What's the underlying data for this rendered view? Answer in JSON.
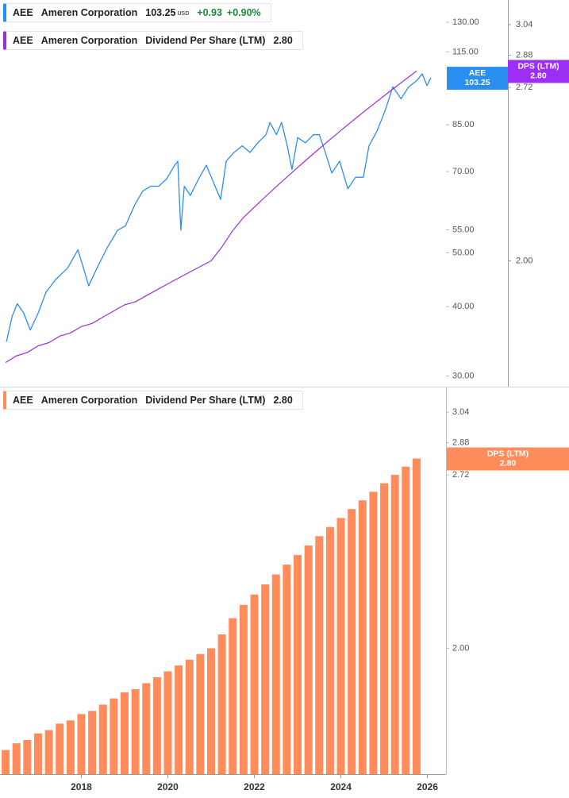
{
  "chart_data": [
    {
      "type": "line",
      "log_scale": true,
      "legend_rows": [
        {
          "ticker": "AEE",
          "company": "Ameren Corporation",
          "price": "103.25",
          "currency": "USD",
          "change": "+0.93",
          "change_percent": "+0.90%"
        },
        {
          "ticker": "AEE",
          "company": "Ameren Corporation",
          "metric": "Dividend Per Share (LTM)",
          "value": "2.80"
        }
      ],
      "xlim": [
        2016.12,
        2026.43
      ],
      "ylim": [
        28.7,
        142.6
      ],
      "yticks": [
        {
          "value": 130,
          "label": "130.00"
        },
        {
          "value": 115,
          "label": "115.00"
        },
        {
          "value": 85,
          "label": "85.00"
        },
        {
          "value": 70,
          "label": "70.00"
        },
        {
          "value": 55,
          "label": "55.00"
        },
        {
          "value": 50,
          "label": "50.00"
        },
        {
          "value": 40,
          "label": "40.00"
        },
        {
          "value": 30,
          "label": "30.00"
        }
      ],
      "y2lim": [
        1.6,
        3.176
      ],
      "y2ticks": [
        3.04,
        2.88,
        2.72,
        {
          "value": 2,
          "label": "2.00"
        }
      ],
      "x": [
        2016.27,
        2016.4,
        2016.52,
        2016.67,
        2016.82,
        2017.0,
        2017.18,
        2017.4,
        2017.68,
        2017.92,
        2018.05,
        2018.17,
        2018.36,
        2018.6,
        2018.84,
        2019.02,
        2019.24,
        2019.42,
        2019.61,
        2019.79,
        2019.97,
        2020.16,
        2020.23,
        2020.3,
        2020.38,
        2020.52,
        2020.71,
        2020.89,
        2021.07,
        2021.22,
        2021.35,
        2021.53,
        2021.72,
        2021.9,
        2022.08,
        2022.27,
        2022.36,
        2022.51,
        2022.63,
        2022.76,
        2022.87,
        2023.0,
        2023.18,
        2023.37,
        2023.5,
        2023.64,
        2023.79,
        2023.97,
        2024.16,
        2024.34,
        2024.52,
        2024.65,
        2024.84,
        2025.02,
        2025.2,
        2025.39,
        2025.57,
        2025.75,
        2025.88,
        2025.99,
        2026.08
      ],
      "series": [
        {
          "name": "AEE",
          "color": "#2a8ef0",
          "values": [
            34.6,
            38.4,
            40.5,
            38.9,
            36.3,
            38.9,
            42.4,
            44.7,
            46.9,
            50.6,
            46.9,
            43.6,
            46.9,
            51.1,
            54.9,
            55.9,
            61.1,
            64.6,
            65.9,
            65.9,
            67.9,
            71.9,
            73.1,
            54.9,
            65.9,
            63.4,
            67.9,
            71.9,
            66.5,
            62.4,
            73.1,
            75.8,
            77.9,
            75.8,
            78.9,
            81.6,
            85.8,
            81.6,
            85.8,
            77.9,
            70.6,
            80.6,
            78.9,
            81.6,
            81.6,
            75.8,
            69.6,
            73.1,
            65.2,
            68.4,
            68.4,
            77.9,
            83.0,
            90.0,
            99.5,
            94.7,
            99.5,
            102.0,
            105.0,
            100.0,
            103.25
          ]
        },
        {
          "name": "DPS (LTM)",
          "color": "#9b2fd8",
          "tag_color": "#9d2ff5",
          "axis": "y2",
          "x": [
            2016.25,
            2016.5,
            2016.75,
            2017,
            2017.25,
            2017.5,
            2017.75,
            2018,
            2018.25,
            2018.5,
            2018.75,
            2019,
            2019.25,
            2019.5,
            2019.75,
            2020,
            2020.25,
            2020.5,
            2020.75,
            2021,
            2021.25,
            2021.5,
            2021.75,
            2022,
            2022.25,
            2022.5,
            2022.75,
            2023,
            2023.25,
            2023.5,
            2023.75,
            2024,
            2024.25,
            2024.5,
            2024.75,
            2025,
            2025.25,
            2025.5,
            2025.75
          ],
          "values": [
            1.67,
            1.69,
            1.7,
            1.72,
            1.73,
            1.75,
            1.76,
            1.78,
            1.79,
            1.81,
            1.83,
            1.85,
            1.86,
            1.88,
            1.9,
            1.92,
            1.94,
            1.96,
            1.98,
            2.0,
            2.05,
            2.11,
            2.16,
            2.2,
            2.24,
            2.28,
            2.32,
            2.36,
            2.4,
            2.44,
            2.48,
            2.52,
            2.56,
            2.6,
            2.64,
            2.68,
            2.72,
            2.76,
            2.8
          ]
        }
      ]
    },
    {
      "type": "bar",
      "log_scale": true,
      "legend_rows": [
        {
          "ticker": "AEE",
          "company": "Ameren Corporation",
          "metric": "Dividend Per Share (LTM)",
          "value": "2.80"
        }
      ],
      "xlim": [
        2016.12,
        2026.43
      ],
      "xticks": [
        2018,
        2020,
        2022,
        2024,
        2026
      ],
      "ylim": [
        1.6,
        3.176
      ],
      "yticks": [
        3.04,
        2.88,
        2.72,
        {
          "value": 2,
          "label": "2.00"
        }
      ],
      "x": [
        2016.25,
        2016.5,
        2016.75,
        2017,
        2017.25,
        2017.5,
        2017.75,
        2018,
        2018.25,
        2018.5,
        2018.75,
        2019,
        2019.25,
        2019.5,
        2019.75,
        2020,
        2020.25,
        2020.5,
        2020.75,
        2021,
        2021.25,
        2021.5,
        2021.75,
        2022,
        2022.25,
        2022.5,
        2022.75,
        2023,
        2023.25,
        2023.5,
        2023.75,
        2024,
        2024.25,
        2024.5,
        2024.75,
        2025,
        2025.25,
        2025.5,
        2025.75
      ],
      "series": [
        {
          "name": "DPS (LTM)",
          "color": "#ff8c5a",
          "values": [
            1.67,
            1.69,
            1.7,
            1.72,
            1.73,
            1.75,
            1.76,
            1.78,
            1.79,
            1.81,
            1.83,
            1.85,
            1.86,
            1.88,
            1.9,
            1.92,
            1.94,
            1.96,
            1.98,
            2.0,
            2.05,
            2.11,
            2.16,
            2.2,
            2.24,
            2.28,
            2.32,
            2.36,
            2.4,
            2.44,
            2.48,
            2.52,
            2.56,
            2.6,
            2.64,
            2.68,
            2.72,
            2.76,
            2.8
          ]
        }
      ]
    }
  ]
}
